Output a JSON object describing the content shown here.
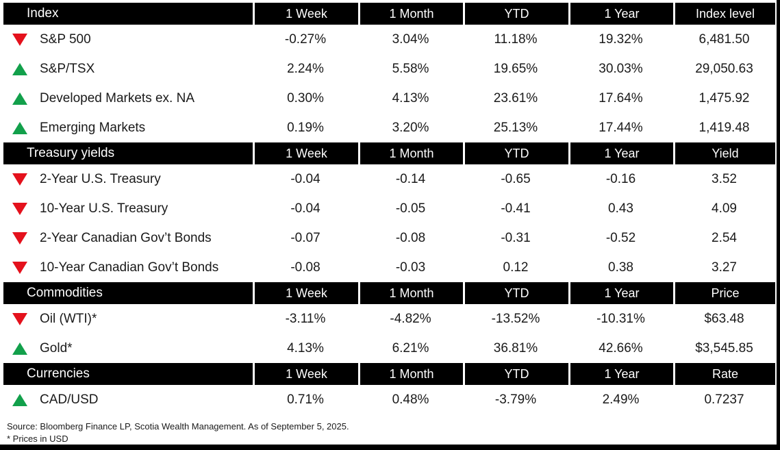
{
  "colors": {
    "down": "#e4111c",
    "up": "#12a04b",
    "band_bg": "#000000",
    "band_text": "#ffffff"
  },
  "chart_data": {
    "type": "table",
    "sections": [
      {
        "title": "Index",
        "columns": [
          "1 Week",
          "1 Month",
          "YTD",
          "1 Year",
          "Index level"
        ],
        "rows": [
          {
            "direction": "down",
            "label": "S&P 500",
            "values": [
              "-0.27%",
              "3.04%",
              "11.18%",
              "19.32%",
              "6,481.50"
            ]
          },
          {
            "direction": "up",
            "label": "S&P/TSX",
            "values": [
              "2.24%",
              "5.58%",
              "19.65%",
              "30.03%",
              "29,050.63"
            ]
          },
          {
            "direction": "up",
            "label": "Developed Markets ex. NA",
            "values": [
              "0.30%",
              "4.13%",
              "23.61%",
              "17.64%",
              "1,475.92"
            ]
          },
          {
            "direction": "up",
            "label": "Emerging Markets",
            "values": [
              "0.19%",
              "3.20%",
              "25.13%",
              "17.44%",
              "1,419.48"
            ]
          }
        ]
      },
      {
        "title": "Treasury yields",
        "columns": [
          "1 Week",
          "1 Month",
          "YTD",
          "1 Year",
          "Yield"
        ],
        "rows": [
          {
            "direction": "down",
            "label": "2-Year U.S. Treasury",
            "values": [
              "-0.04",
              "-0.14",
              "-0.65",
              "-0.16",
              "3.52"
            ]
          },
          {
            "direction": "down",
            "label": "10-Year U.S. Treasury",
            "values": [
              "-0.04",
              "-0.05",
              "-0.41",
              "0.43",
              "4.09"
            ]
          },
          {
            "direction": "down",
            "label": "2-Year Canadian Gov’t Bonds",
            "values": [
              "-0.07",
              "-0.08",
              "-0.31",
              "-0.52",
              "2.54"
            ]
          },
          {
            "direction": "down",
            "label": "10-Year Canadian Gov’t Bonds",
            "values": [
              "-0.08",
              "-0.03",
              "0.12",
              "0.38",
              "3.27"
            ]
          }
        ]
      },
      {
        "title": "Commodities",
        "columns": [
          "1 Week",
          "1 Month",
          "YTD",
          "1 Year",
          "Price"
        ],
        "rows": [
          {
            "direction": "down",
            "label": "Oil (WTI)*",
            "values": [
              "-3.11%",
              "-4.82%",
              "-13.52%",
              "-10.31%",
              "$63.48"
            ]
          },
          {
            "direction": "up",
            "label": "Gold*",
            "values": [
              "4.13%",
              "6.21%",
              "36.81%",
              "42.66%",
              "$3,545.85"
            ]
          }
        ]
      },
      {
        "title": "Currencies",
        "columns": [
          "1 Week",
          "1 Month",
          "YTD",
          "1 Year",
          "Rate"
        ],
        "rows": [
          {
            "direction": "up",
            "label": "CAD/USD",
            "values": [
              "0.71%",
              "0.48%",
              "-3.79%",
              "2.49%",
              "0.7237"
            ]
          }
        ]
      }
    ]
  },
  "footer": {
    "source": "Source: Bloomberg Finance LP, Scotia Wealth Management. As of September 5, 2025.",
    "note": "* Prices in USD"
  }
}
